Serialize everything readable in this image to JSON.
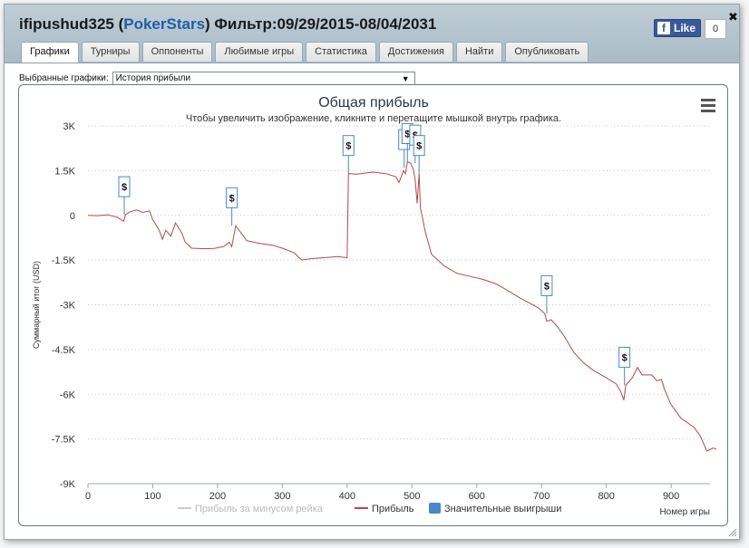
{
  "header": {
    "user": "ifipushud325",
    "site": "PokerStars",
    "filter_label": "Фильтр:",
    "filter_range": "09/29/2015-08/04/2031"
  },
  "facebook": {
    "like_label": "Like",
    "like_count": "0"
  },
  "tabs": [
    {
      "label": "Графики",
      "active": true
    },
    {
      "label": "Турниры",
      "active": false
    },
    {
      "label": "Оппоненты",
      "active": false
    },
    {
      "label": "Любимые игры",
      "active": false
    },
    {
      "label": "Статистика",
      "active": false
    },
    {
      "label": "Достижения",
      "active": false
    },
    {
      "label": "Найти",
      "active": false
    },
    {
      "label": "Опубликовать",
      "active": false
    }
  ],
  "selector": {
    "label": "Выбранные графики:",
    "value": "История прибыли"
  },
  "colors": {
    "profit": "#b34a4a",
    "rake": "#cccccc",
    "win_marker": "#4a87c8",
    "grid": "#c8c8c8"
  },
  "chart_data": {
    "type": "line",
    "title": "Общая прибыль",
    "subtitle": "Чтобы увеличить изображение, кликните и перетащите мышкой внутрь графика.",
    "xlabel": "Номер игры",
    "ylabel": "Суммарный итог (USD)",
    "xlim": [
      0,
      960
    ],
    "ylim": [
      -9000,
      3000
    ],
    "xticks": [
      0,
      100,
      200,
      300,
      400,
      500,
      600,
      700,
      800,
      900
    ],
    "yticks": [
      {
        "v": 3000,
        "label": "3K"
      },
      {
        "v": 1500,
        "label": "1.5K"
      },
      {
        "v": 0,
        "label": "0"
      },
      {
        "v": -1500,
        "label": "-1.5K"
      },
      {
        "v": -3000,
        "label": "-3K"
      },
      {
        "v": -4500,
        "label": "-4.5K"
      },
      {
        "v": -6000,
        "label": "-6K"
      },
      {
        "v": -7500,
        "label": "-7.5K"
      },
      {
        "v": -9000,
        "label": "-9K"
      }
    ],
    "grid": true,
    "legend_position": "bottom",
    "series": [
      {
        "name": "Прибыль за минусом рейка",
        "visible": false,
        "values": []
      },
      {
        "name": "Прибыль",
        "visible": true,
        "points": [
          [
            0,
            0
          ],
          [
            15,
            -10
          ],
          [
            30,
            20
          ],
          [
            45,
            -60
          ],
          [
            55,
            -200
          ],
          [
            58,
            20
          ],
          [
            65,
            120
          ],
          [
            75,
            180
          ],
          [
            85,
            100
          ],
          [
            95,
            150
          ],
          [
            100,
            -150
          ],
          [
            110,
            -500
          ],
          [
            115,
            -800
          ],
          [
            120,
            -500
          ],
          [
            128,
            -700
          ],
          [
            135,
            -250
          ],
          [
            145,
            -600
          ],
          [
            150,
            -900
          ],
          [
            160,
            -1100
          ],
          [
            180,
            -1120
          ],
          [
            195,
            -1110
          ],
          [
            210,
            -1040
          ],
          [
            218,
            -900
          ],
          [
            222,
            -1050
          ],
          [
            228,
            -350
          ],
          [
            235,
            -550
          ],
          [
            245,
            -850
          ],
          [
            265,
            -940
          ],
          [
            285,
            -1000
          ],
          [
            300,
            -1100
          ],
          [
            318,
            -1250
          ],
          [
            330,
            -1500
          ],
          [
            345,
            -1450
          ],
          [
            365,
            -1420
          ],
          [
            385,
            -1380
          ],
          [
            400,
            -1420
          ],
          [
            402,
            1400
          ],
          [
            415,
            1380
          ],
          [
            440,
            1450
          ],
          [
            460,
            1400
          ],
          [
            475,
            1300
          ],
          [
            480,
            1100
          ],
          [
            487,
            1500
          ],
          [
            490,
            1400
          ],
          [
            493,
            1800
          ],
          [
            498,
            1750
          ],
          [
            502,
            1550
          ],
          [
            505,
            1200
          ],
          [
            508,
            400
          ],
          [
            511,
            1400
          ],
          [
            513,
            250
          ],
          [
            517,
            -150
          ],
          [
            520,
            -500
          ],
          [
            525,
            -900
          ],
          [
            530,
            -1300
          ],
          [
            550,
            -1700
          ],
          [
            570,
            -1950
          ],
          [
            590,
            -2050
          ],
          [
            610,
            -2150
          ],
          [
            630,
            -2300
          ],
          [
            650,
            -2550
          ],
          [
            665,
            -2750
          ],
          [
            680,
            -2920
          ],
          [
            695,
            -3100
          ],
          [
            705,
            -3300
          ],
          [
            708,
            -3550
          ],
          [
            715,
            -3500
          ],
          [
            725,
            -3750
          ],
          [
            735,
            -4050
          ],
          [
            750,
            -4600
          ],
          [
            765,
            -4950
          ],
          [
            780,
            -5200
          ],
          [
            800,
            -5450
          ],
          [
            815,
            -5650
          ],
          [
            822,
            -5900
          ],
          [
            827,
            -6200
          ],
          [
            830,
            -5700
          ],
          [
            840,
            -5450
          ],
          [
            848,
            -5100
          ],
          [
            855,
            -5350
          ],
          [
            870,
            -5350
          ],
          [
            878,
            -5550
          ],
          [
            885,
            -5500
          ],
          [
            890,
            -5850
          ],
          [
            900,
            -6350
          ],
          [
            915,
            -6800
          ],
          [
            935,
            -7100
          ],
          [
            945,
            -7400
          ],
          [
            955,
            -7900
          ],
          [
            965,
            -7800
          ],
          [
            970,
            -7850
          ]
        ]
      }
    ],
    "big_wins_label": "Значительные выигрыши",
    "big_wins": [
      {
        "x": 56,
        "y": 20
      },
      {
        "x": 222,
        "y": -350
      },
      {
        "x": 402,
        "y": 1400
      },
      {
        "x": 488,
        "y": 1600
      },
      {
        "x": 493,
        "y": 1800
      },
      {
        "x": 505,
        "y": 1750
      },
      {
        "x": 511,
        "y": 1400
      },
      {
        "x": 708,
        "y": -3300
      },
      {
        "x": 828,
        "y": -5700
      }
    ],
    "marker_label": "$"
  }
}
